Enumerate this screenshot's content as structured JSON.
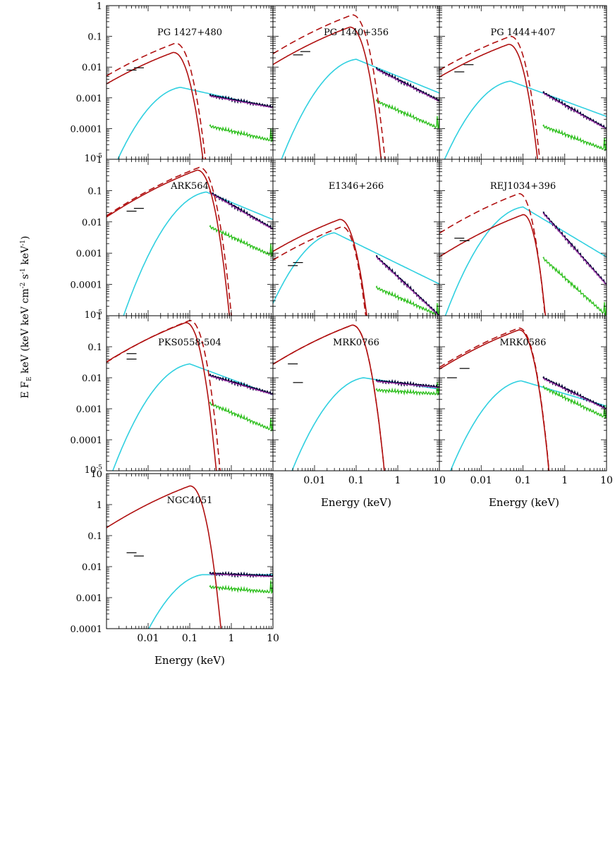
{
  "figure": {
    "ylabel": "E F",
    "ylabel_sub": "E",
    "ylabel_rest": " keV (keV keV cm",
    "ylabel_sup1": "-2",
    "ylabel_mid": " s",
    "ylabel_sup2": "-1",
    "ylabel_mid2": " keV",
    "ylabel_sup3": "-1",
    "ylabel_end": ")",
    "xlabel": "Energy (keV)",
    "x_ticks": [
      "0.01",
      "0.1",
      "1",
      "10"
    ],
    "y_ticks_main": [
      "1",
      "0.1",
      "0.01",
      "0.001",
      "0.0001"
    ],
    "y_tick_bottom_base": "10",
    "y_tick_bottom_exp": "-5",
    "y_ticks_ngc": [
      "10",
      "1",
      "0.1",
      "0.01",
      "0.001",
      "0.0001"
    ]
  },
  "colors": {
    "disc": "#b01010",
    "powerlaw": "#30d0e0",
    "reflection": "#30c020",
    "total": "#c040c0",
    "data": "#000033",
    "optical": "#000000"
  },
  "chart_data": [
    {
      "type": "line",
      "name": "PG 1427+480",
      "xscale": "log",
      "yscale": "log",
      "xlim": [
        0.001,
        10
      ],
      "ylim": [
        1e-05,
        1
      ],
      "disc": {
        "peak_e": 0.04,
        "peak_f": 0.03,
        "cut_e": 0.28
      },
      "disc_dashed": {
        "peak_e": 0.045,
        "peak_f": 0.06,
        "cut_e": 0.3
      },
      "powerlaw": {
        "peak_e": 0.06,
        "peak_f": 0.0022,
        "slope": -0.3
      },
      "reflection": {
        "start_f": 0.00012,
        "end_f": 4e-05
      },
      "data": {
        "start_f": 0.0012,
        "end_f": 0.0005
      },
      "optical": [
        [
          0.004,
          0.008
        ],
        [
          0.006,
          0.0095
        ]
      ]
    },
    {
      "type": "line",
      "name": "PG 1440+356",
      "xscale": "log",
      "yscale": "log",
      "xlim": [
        0.001,
        10
      ],
      "ylim": [
        1e-05,
        1
      ],
      "disc": {
        "peak_e": 0.07,
        "peak_f": 0.2,
        "cut_e": 0.45
      },
      "disc_dashed": {
        "peak_e": 0.08,
        "peak_f": 0.5,
        "cut_e": 0.52
      },
      "powerlaw": {
        "peak_e": 0.1,
        "peak_f": 0.018,
        "slope": -0.55
      },
      "reflection": {
        "start_f": 0.0008,
        "end_f": 0.0001
      },
      "data": {
        "start_f": 0.009,
        "end_f": 0.0008
      },
      "optical": [
        [
          0.004,
          0.025
        ],
        [
          0.006,
          0.032
        ]
      ]
    },
    {
      "type": "line",
      "name": "PG 1444+407",
      "xscale": "log",
      "yscale": "log",
      "xlim": [
        0.001,
        10
      ],
      "ylim": [
        1e-05,
        1
      ],
      "disc": {
        "peak_e": 0.045,
        "peak_f": 0.055,
        "cut_e": 0.28
      },
      "disc_dashed": {
        "peak_e": 0.05,
        "peak_f": 0.1,
        "cut_e": 0.3
      },
      "powerlaw": {
        "peak_e": 0.05,
        "peak_f": 0.0035,
        "slope": -0.5
      },
      "reflection": {
        "start_f": 0.00012,
        "end_f": 2e-05
      },
      "data": {
        "start_f": 0.0015,
        "end_f": 0.0001
      },
      "optical": [
        [
          0.003,
          0.007
        ],
        [
          0.005,
          0.012
        ]
      ]
    },
    {
      "type": "line",
      "name": "ARK564",
      "xscale": "log",
      "yscale": "log",
      "xlim": [
        0.001,
        10
      ],
      "ylim": [
        1e-05,
        1
      ],
      "disc": {
        "peak_e": 0.15,
        "peak_f": 0.45,
        "cut_e": 0.95
      },
      "disc_dashed": {
        "peak_e": 0.17,
        "peak_f": 0.55,
        "cut_e": 1.05
      },
      "powerlaw": {
        "peak_e": 0.25,
        "peak_f": 0.09,
        "slope": -0.55
      },
      "reflection": {
        "start_f": 0.007,
        "end_f": 0.0008
      },
      "data": {
        "start_f": 0.09,
        "end_f": 0.006
      },
      "optical": [
        [
          0.004,
          0.022
        ],
        [
          0.006,
          0.027
        ]
      ]
    },
    {
      "type": "line",
      "name": "E1346+266",
      "xscale": "log",
      "yscale": "log",
      "xlim": [
        0.001,
        10
      ],
      "ylim": [
        1e-05,
        1
      ],
      "disc": {
        "peak_e": 0.04,
        "peak_f": 0.012,
        "cut_e": 0.26
      },
      "disc_dashed": {
        "peak_e": 0.045,
        "peak_f": 0.007,
        "cut_e": 0.25
      },
      "powerlaw": {
        "peak_e": 0.03,
        "peak_f": 0.0045,
        "slope": -0.65
      },
      "reflection": {
        "start_f": 8e-05,
        "end_f": 1e-05
      },
      "data": {
        "start_f": 0.0008,
        "end_f": 1e-05
      },
      "optical": [
        [
          0.003,
          0.0004
        ],
        [
          0.004,
          0.0005
        ]
      ]
    },
    {
      "type": "line",
      "name": "REJ1034+396",
      "xscale": "log",
      "yscale": "log",
      "xlim": [
        0.001,
        10
      ],
      "ylim": [
        1e-05,
        1
      ],
      "disc": {
        "peak_e": 0.1,
        "peak_f": 0.017,
        "cut_e": 0.45
      },
      "disc_dashed": {
        "peak_e": 0.08,
        "peak_f": 0.08,
        "cut_e": 0.4
      },
      "powerlaw": {
        "peak_e": 0.1,
        "peak_f": 0.03,
        "slope": -0.8
      },
      "reflection": {
        "start_f": 0.0007,
        "end_f": 1e-05
      },
      "data": {
        "start_f": 0.02,
        "end_f": 0.0001
      },
      "optical": [
        [
          0.003,
          0.003
        ],
        [
          0.004,
          0.0025
        ]
      ]
    },
    {
      "type": "line",
      "name": "PKS0558-504",
      "xscale": "log",
      "yscale": "log",
      "xlim": [
        0.001,
        10
      ],
      "ylim": [
        1e-05,
        1
      ],
      "disc": {
        "peak_e": 0.08,
        "peak_f": 0.6,
        "cut_e": 0.45
      },
      "disc_dashed": {
        "peak_e": 0.1,
        "peak_f": 0.7,
        "cut_e": 0.55
      },
      "powerlaw": {
        "peak_e": 0.1,
        "peak_f": 0.028,
        "slope": -0.5
      },
      "reflection": {
        "start_f": 0.0015,
        "end_f": 0.0002
      },
      "data": {
        "start_f": 0.012,
        "end_f": 0.003
      },
      "optical": [
        [
          0.004,
          0.06
        ],
        [
          0.004,
          0.04
        ]
      ]
    },
    {
      "type": "line",
      "name": "MRK0766",
      "xscale": "log",
      "yscale": "log",
      "xlim": [
        0.001,
        10
      ],
      "ylim": [
        1e-05,
        1
      ],
      "disc": {
        "peak_e": 0.08,
        "peak_f": 0.5,
        "cut_e": 0.5
      },
      "disc_dashed": {
        "peak_e": 0.08,
        "peak_f": 0.5,
        "cut_e": 0.5
      },
      "powerlaw": {
        "peak_e": 0.15,
        "peak_f": 0.01,
        "slope": -0.2
      },
      "reflection": {
        "start_f": 0.004,
        "end_f": 0.003
      },
      "data": {
        "start_f": 0.008,
        "end_f": 0.005
      },
      "optical": [
        [
          0.003,
          0.028
        ],
        [
          0.004,
          0.007
        ]
      ]
    },
    {
      "type": "line",
      "name": "MRK0586",
      "xscale": "log",
      "yscale": "log",
      "xlim": [
        0.001,
        10
      ],
      "ylim": [
        1e-05,
        1
      ],
      "disc": {
        "peak_e": 0.08,
        "peak_f": 0.35,
        "cut_e": 0.45
      },
      "disc_dashed": {
        "peak_e": 0.08,
        "peak_f": 0.4,
        "cut_e": 0.45
      },
      "powerlaw": {
        "peak_e": 0.09,
        "peak_f": 0.008,
        "slope": -0.4
      },
      "reflection": {
        "start_f": 0.005,
        "end_f": 0.0005
      },
      "data": {
        "start_f": 0.01,
        "end_f": 0.001
      },
      "optical": [
        [
          0.002,
          0.01
        ],
        [
          0.004,
          0.02
        ]
      ]
    },
    {
      "type": "line",
      "name": "NGC4051",
      "xscale": "log",
      "yscale": "log",
      "xlim": [
        0.001,
        10
      ],
      "ylim": [
        0.0001,
        10
      ],
      "disc": {
        "peak_e": 0.1,
        "peak_f": 4,
        "cut_e": 0.6
      },
      "disc_dashed": null,
      "powerlaw": {
        "peak_e": 0.2,
        "peak_f": 0.0055,
        "slope": 0.0
      },
      "reflection": {
        "start_f": 0.0022,
        "end_f": 0.0015
      },
      "data": {
        "start_f": 0.006,
        "end_f": 0.005
      },
      "optical": [
        [
          0.004,
          0.028
        ],
        [
          0.006,
          0.022
        ]
      ]
    }
  ]
}
